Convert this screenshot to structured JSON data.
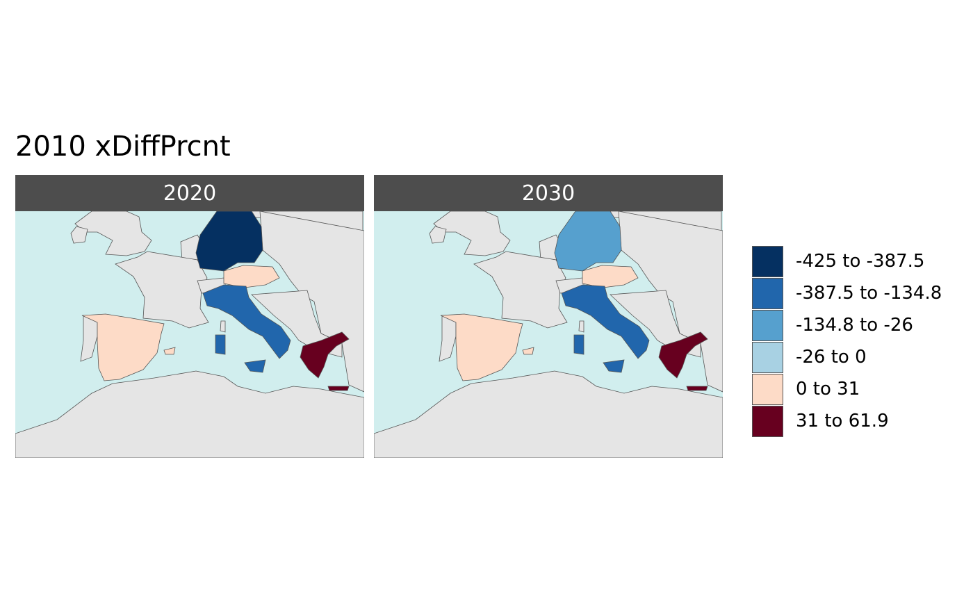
{
  "title": "2010 xDiffPrcnt",
  "colors": {
    "sea": "#d1eeee",
    "land": "#e5e5e5",
    "border": "#555555",
    "strip": "#4d4d4d"
  },
  "panels": [
    {
      "label": "2020",
      "fills": {
        "germany": "#053061",
        "austria": "#fddbc7",
        "italy": "#2166ac",
        "spain": "#fddbc7",
        "greece": "#67001f"
      }
    },
    {
      "label": "2030",
      "fills": {
        "germany": "#56a0ce",
        "austria": "#fddbc7",
        "italy": "#2166ac",
        "spain": "#fddbc7",
        "greece": "#67001f"
      }
    }
  ],
  "legend": [
    {
      "label": "-425 to -387.5",
      "color": "#053061"
    },
    {
      "label": "-387.5 to -134.8",
      "color": "#2166ac"
    },
    {
      "label": "-134.8 to -26",
      "color": "#56a0ce"
    },
    {
      "label": "-26 to 0",
      "color": "#a8d1e3"
    },
    {
      "label": "0 to 31",
      "color": "#fddbc7"
    },
    {
      "label": "31 to 61.9",
      "color": "#67001f"
    }
  ]
}
